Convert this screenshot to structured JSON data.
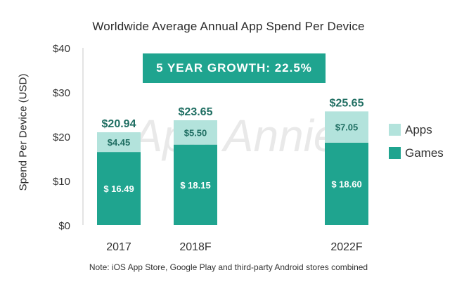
{
  "chart_data": {
    "type": "bar",
    "stacked": true,
    "title": "Worldwide Average Annual App Spend Per Device",
    "ylabel": "Spend Per Device (USD)",
    "xlabel": "",
    "ylim": [
      0,
      40
    ],
    "yticks": [
      "$0",
      "$10",
      "$20",
      "$30",
      "$40"
    ],
    "categories": [
      "2017",
      "2018F",
      "2022F"
    ],
    "series": [
      {
        "name": "Games",
        "values": [
          16.49,
          18.15,
          18.6
        ],
        "labels": [
          "$ 16.49",
          "$ 18.15",
          "$ 18.60"
        ],
        "color": "#1fa48f"
      },
      {
        "name": "Apps",
        "values": [
          4.45,
          5.5,
          7.05
        ],
        "labels": [
          "$4.45",
          "$5.50",
          "$7.05"
        ],
        "color": "#b3e3dc"
      }
    ],
    "totals": [
      "$20.94",
      "$23.65",
      "$25.65"
    ],
    "legend_position": "right",
    "grid": false,
    "annotation": "5 YEAR GROWTH: 22.5%",
    "watermark": "App Annie",
    "note": "Note: iOS App Store, Google Play and third-party Android stores combined",
    "colors": {
      "accent": "#1fa48f",
      "total_text": "#1f6e62",
      "axis_text": "#333333"
    }
  }
}
